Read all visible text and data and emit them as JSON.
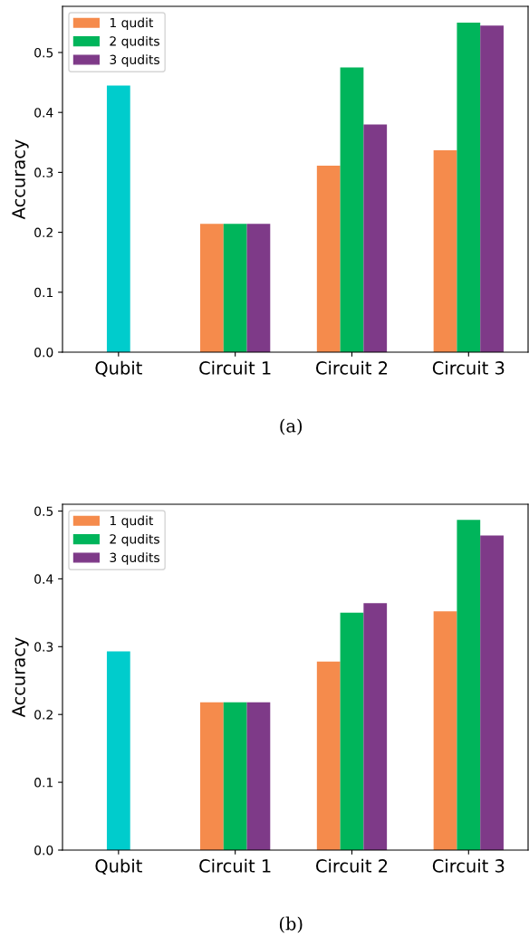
{
  "chart_data": [
    {
      "type": "bar",
      "categories": [
        "Qubit",
        "Circuit 1",
        "Circuit 2",
        "Circuit 3"
      ],
      "ylabel": "Accuracy",
      "ylim": [
        0,
        0.577
      ],
      "yticks": [
        {
          "value": 0,
          "label": "0.0"
        },
        0.1,
        0.2,
        0.3,
        0.4,
        0.5
      ],
      "legend": "top left",
      "grid": false,
      "annotations": [
        "(a)"
      ],
      "series": [
        {
          "color": "#00cccc",
          "values": [
            0.445,
            null,
            null,
            null
          ]
        },
        {
          "name": "1 qudit",
          "color": "#f58b4c",
          "values": [
            null,
            0.214,
            0.311,
            0.337
          ]
        },
        {
          "name": "2 qudits",
          "color": "#00b55b",
          "values": [
            null,
            0.214,
            0.475,
            0.55
          ]
        },
        {
          "name": "3 qudits",
          "color": "#7e3a88",
          "values": [
            null,
            0.214,
            0.38,
            0.545
          ]
        }
      ]
    },
    {
      "type": "bar",
      "categories": [
        "Qubit",
        "Circuit 1",
        "Circuit 2",
        "Circuit 3"
      ],
      "ylabel": "Accuracy",
      "ylim": [
        0,
        0.51
      ],
      "yticks": [
        {
          "value": 0,
          "label": "0.0"
        },
        0.1,
        0.2,
        0.3,
        0.4,
        0.5
      ],
      "legend": "top left",
      "grid": false,
      "annotations": [
        "(b)"
      ],
      "series": [
        {
          "color": "#00cccc",
          "values": [
            0.293,
            null,
            null,
            null
          ]
        },
        {
          "name": "1 qudit",
          "color": "#f58b4c",
          "values": [
            null,
            0.218,
            0.278,
            0.352
          ]
        },
        {
          "name": "2 qudits",
          "color": "#00b55b",
          "values": [
            null,
            0.218,
            0.35,
            0.487
          ]
        },
        {
          "name": "3 qudits",
          "color": "#7e3a88",
          "values": [
            null,
            0.218,
            0.364,
            0.464
          ]
        }
      ]
    }
  ]
}
